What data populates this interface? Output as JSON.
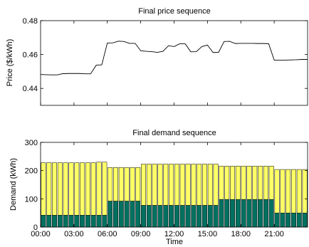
{
  "chart_data": [
    {
      "type": "line",
      "title": "Final price sequence",
      "xlabel": "",
      "ylabel": "Price ($/kWh)",
      "xlim": [
        0,
        24
      ],
      "ylim": [
        0.43,
        0.48
      ],
      "yticks": [
        0.44,
        0.46,
        0.48
      ],
      "ytick_labels": [
        "0.44",
        "0.46",
        "0.48"
      ],
      "grid": false,
      "series": [
        {
          "color": "#000000",
          "x": [
            0,
            0.5,
            1,
            1.5,
            2,
            2.5,
            3,
            3.5,
            4,
            4.5,
            5,
            5.5,
            6,
            6.5,
            7,
            7.5,
            8,
            8.5,
            9,
            9.5,
            10,
            10.5,
            11,
            11.5,
            12,
            12.5,
            13,
            13.5,
            14,
            14.5,
            15,
            15.5,
            16,
            16.5,
            17,
            17.5,
            18,
            18.5,
            19,
            19.5,
            20,
            20.5,
            21,
            21.5,
            22,
            22.5,
            23,
            23.5
          ],
          "y": [
            0.4482,
            0.4481,
            0.448,
            0.448,
            0.4487,
            0.4488,
            0.4488,
            0.4488,
            0.4486,
            0.4486,
            0.4537,
            0.4539,
            0.4668,
            0.4669,
            0.4679,
            0.4677,
            0.4666,
            0.4666,
            0.4622,
            0.4619,
            0.4617,
            0.4613,
            0.4619,
            0.4652,
            0.4647,
            0.4663,
            0.4663,
            0.4616,
            0.4617,
            0.4647,
            0.4656,
            0.4612,
            0.4613,
            0.4677,
            0.4678,
            0.4665,
            0.4666,
            0.4666,
            0.4666,
            0.4665,
            0.4665,
            0.4664,
            0.4567,
            0.4567,
            0.4567,
            0.4568,
            0.4569,
            0.4571
          ]
        }
      ]
    },
    {
      "type": "bar",
      "stacked": true,
      "title": "Final demand sequence",
      "xlabel": "Time",
      "ylabel": "Demand (kWh)",
      "xlim": [
        0,
        24
      ],
      "ylim": [
        0,
        300
      ],
      "yticks": [
        0,
        100,
        200,
        300
      ],
      "ytick_labels": [
        "0",
        "100",
        "200",
        "300"
      ],
      "xticks": [
        0,
        3,
        6,
        9,
        12,
        15,
        18,
        21
      ],
      "xtick_labels": [
        "00:00",
        "03:00",
        "06:00",
        "09:00",
        "12:00",
        "15:00",
        "18:00",
        "21:00"
      ],
      "grid": false,
      "x": [
        0,
        0.5,
        1,
        1.5,
        2,
        2.5,
        3,
        3.5,
        4,
        4.5,
        5,
        5.5,
        6,
        6.5,
        7,
        7.5,
        8,
        8.5,
        9,
        9.5,
        10,
        10.5,
        11,
        11.5,
        12,
        12.5,
        13,
        13.5,
        14,
        14.5,
        15,
        15.5,
        16,
        16.5,
        17,
        17.5,
        18,
        18.5,
        19,
        19.5,
        20,
        20.5,
        21,
        21.5,
        22,
        22.5,
        23,
        23.5
      ],
      "series": [
        {
          "color": "#007060",
          "values": [
            42,
            42,
            42,
            42,
            42,
            42,
            42,
            42,
            42,
            42,
            42,
            42,
            92,
            92,
            92,
            92,
            92,
            92,
            77,
            77,
            77,
            77,
            77,
            77,
            77,
            77,
            77,
            77,
            77,
            77,
            77,
            77,
            98,
            98,
            98,
            98,
            98,
            98,
            98,
            98,
            98,
            98,
            50,
            50,
            50,
            50,
            50,
            50
          ]
        },
        {
          "color": "#ffff66",
          "values": [
            186,
            186,
            186,
            186,
            186,
            186,
            186,
            186,
            186,
            186,
            188,
            188,
            119,
            119,
            119,
            119,
            119,
            119,
            146,
            146,
            146,
            146,
            146,
            146,
            146,
            146,
            146,
            146,
            146,
            146,
            146,
            146,
            118,
            118,
            118,
            118,
            118,
            118,
            118,
            118,
            118,
            118,
            154,
            154,
            154,
            154,
            154,
            154
          ]
        }
      ]
    }
  ]
}
